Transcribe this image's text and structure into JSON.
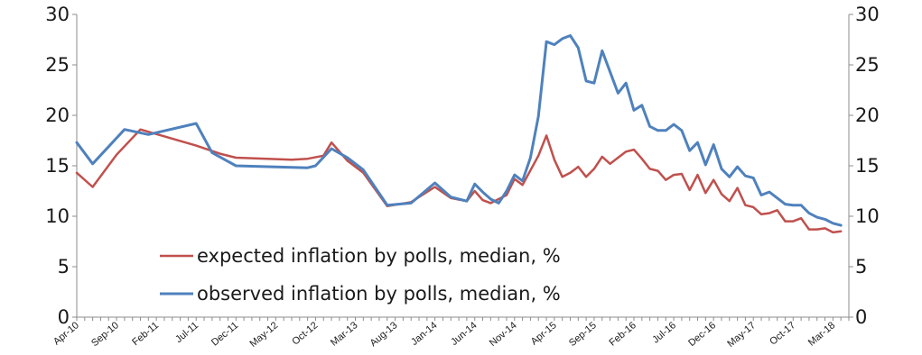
{
  "chart_data": {
    "type": "line",
    "title": "",
    "xlabel": "",
    "ylabel": "",
    "ylim": [
      0,
      30
    ],
    "yticks": [
      0,
      5,
      10,
      15,
      20,
      25,
      30
    ],
    "y2ticks": [
      0,
      5,
      10,
      15,
      20,
      25,
      30
    ],
    "grid": false,
    "legend_position": "bottom-left",
    "x_start": "Apr-10",
    "x_end": "May-18",
    "x_tick_labels": [
      "Apr-10",
      "Sep-10",
      "Feb-11",
      "Jul-11",
      "Dec-11",
      "May-12",
      "Oct-12",
      "Mar-13",
      "Aug-13",
      "Jan-14",
      "Jun-14",
      "Nov-14",
      "Apr-15",
      "Sep-15",
      "Feb-16",
      "Jul-16",
      "Dec-16",
      "May-17",
      "Oct-17",
      "Mar-18"
    ],
    "series": [
      {
        "name": "expected inflation by polls, median, %",
        "color": "#c0504d",
        "points": [
          [
            "Apr-10",
            14.3
          ],
          [
            "Jun-10",
            12.9
          ],
          [
            "Sep-10",
            16.1
          ],
          [
            "Dec-10",
            18.6
          ],
          [
            "Jul-11",
            17.0
          ],
          [
            "Oct-11",
            16.2
          ],
          [
            "Dec-11",
            15.8
          ],
          [
            "Jul-12",
            15.6
          ],
          [
            "Sep-12",
            15.7
          ],
          [
            "Nov-12",
            16.0
          ],
          [
            "Dec-12",
            17.3
          ],
          [
            "Feb-13",
            15.5
          ],
          [
            "Apr-13",
            14.3
          ],
          [
            "Jul-13",
            11.0
          ],
          [
            "Oct-13",
            11.4
          ],
          [
            "Jan-14",
            12.9
          ],
          [
            "Mar-14",
            11.8
          ],
          [
            "May-14",
            11.5
          ],
          [
            "Jun-14",
            12.5
          ],
          [
            "Jul-14",
            11.6
          ],
          [
            "Aug-14",
            11.3
          ],
          [
            "Oct-14",
            12.1
          ],
          [
            "Nov-14",
            13.7
          ],
          [
            "Dec-14",
            13.1
          ],
          [
            "Feb-15",
            16.0
          ],
          [
            "Mar-15",
            18.0
          ],
          [
            "Apr-15",
            15.6
          ],
          [
            "May-15",
            13.9
          ],
          [
            "Jun-15",
            14.3
          ],
          [
            "Jul-15",
            14.9
          ],
          [
            "Aug-15",
            13.9
          ],
          [
            "Sep-15",
            14.7
          ],
          [
            "Oct-15",
            15.9
          ],
          [
            "Nov-15",
            15.2
          ],
          [
            "Dec-15",
            15.8
          ],
          [
            "Jan-16",
            16.4
          ],
          [
            "Feb-16",
            16.6
          ],
          [
            "Mar-16",
            15.7
          ],
          [
            "Apr-16",
            14.7
          ],
          [
            "May-16",
            14.5
          ],
          [
            "Jun-16",
            13.6
          ],
          [
            "Jul-16",
            14.1
          ],
          [
            "Aug-16",
            14.2
          ],
          [
            "Sep-16",
            12.6
          ],
          [
            "Oct-16",
            14.1
          ],
          [
            "Nov-16",
            12.3
          ],
          [
            "Dec-16",
            13.6
          ],
          [
            "Jan-17",
            12.2
          ],
          [
            "Feb-17",
            11.5
          ],
          [
            "Mar-17",
            12.8
          ],
          [
            "Apr-17",
            11.1
          ],
          [
            "May-17",
            10.9
          ],
          [
            "Jun-17",
            10.2
          ],
          [
            "Jul-17",
            10.3
          ],
          [
            "Aug-17",
            10.6
          ],
          [
            "Sep-17",
            9.5
          ],
          [
            "Oct-17",
            9.5
          ],
          [
            "Nov-17",
            9.8
          ],
          [
            "Dec-17",
            8.7
          ],
          [
            "Jan-18",
            8.7
          ],
          [
            "Feb-18",
            8.8
          ],
          [
            "Mar-18",
            8.4
          ],
          [
            "Apr-18",
            8.5
          ]
        ]
      },
      {
        "name": "observed inflation by polls, median, %",
        "color": "#4f81bd",
        "points": [
          [
            "Apr-10",
            17.3
          ],
          [
            "Jun-10",
            15.2
          ],
          [
            "Oct-10",
            18.6
          ],
          [
            "Jan-11",
            18.1
          ],
          [
            "Jul-11",
            19.2
          ],
          [
            "Sep-11",
            16.3
          ],
          [
            "Dec-11",
            15.0
          ],
          [
            "Sep-12",
            14.8
          ],
          [
            "Oct-12",
            15.0
          ],
          [
            "Dec-12",
            16.7
          ],
          [
            "Feb-13",
            15.8
          ],
          [
            "Apr-13",
            14.6
          ],
          [
            "Jul-13",
            11.1
          ],
          [
            "Oct-13",
            11.3
          ],
          [
            "Jan-14",
            13.3
          ],
          [
            "Mar-14",
            11.9
          ],
          [
            "May-14",
            11.5
          ],
          [
            "Jun-14",
            13.2
          ],
          [
            "Jul-14",
            12.4
          ],
          [
            "Aug-14",
            11.7
          ],
          [
            "Sep-14",
            11.3
          ],
          [
            "Oct-14",
            12.5
          ],
          [
            "Nov-14",
            14.1
          ],
          [
            "Dec-14",
            13.5
          ],
          [
            "Jan-15",
            15.8
          ],
          [
            "Feb-15",
            19.9
          ],
          [
            "Mar-15",
            27.3
          ],
          [
            "Apr-15",
            27.0
          ],
          [
            "May-15",
            27.6
          ],
          [
            "Jun-15",
            27.9
          ],
          [
            "Jul-15",
            26.7
          ],
          [
            "Aug-15",
            23.4
          ],
          [
            "Sep-15",
            23.2
          ],
          [
            "Oct-15",
            26.4
          ],
          [
            "Nov-15",
            24.3
          ],
          [
            "Dec-15",
            22.2
          ],
          [
            "Jan-16",
            23.2
          ],
          [
            "Feb-16",
            20.5
          ],
          [
            "Mar-16",
            21.0
          ],
          [
            "Apr-16",
            18.9
          ],
          [
            "May-16",
            18.5
          ],
          [
            "Jun-16",
            18.5
          ],
          [
            "Jul-16",
            19.1
          ],
          [
            "Aug-16",
            18.5
          ],
          [
            "Sep-16",
            16.5
          ],
          [
            "Oct-16",
            17.3
          ],
          [
            "Nov-16",
            15.1
          ],
          [
            "Dec-16",
            17.1
          ],
          [
            "Jan-17",
            14.7
          ],
          [
            "Feb-17",
            13.9
          ],
          [
            "Mar-17",
            14.9
          ],
          [
            "Apr-17",
            14.0
          ],
          [
            "May-17",
            13.8
          ],
          [
            "Jun-17",
            12.1
          ],
          [
            "Jul-17",
            12.4
          ],
          [
            "Aug-17",
            11.8
          ],
          [
            "Sep-17",
            11.2
          ],
          [
            "Oct-17",
            11.1
          ],
          [
            "Nov-17",
            11.1
          ],
          [
            "Dec-17",
            10.3
          ],
          [
            "Jan-18",
            9.9
          ],
          [
            "Feb-18",
            9.7
          ],
          [
            "Mar-18",
            9.3
          ],
          [
            "Apr-18",
            9.1
          ]
        ]
      }
    ]
  }
}
